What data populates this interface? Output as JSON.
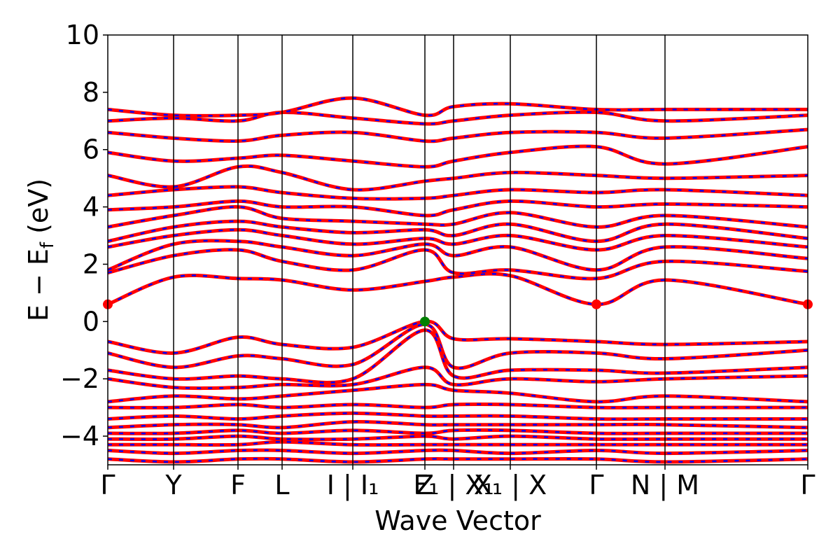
{
  "chart_data": {
    "type": "line",
    "xlabel": "Wave Vector",
    "ylabel": "E − E_f (eV)",
    "ylabel_parts": {
      "main": "E − E",
      "sub": "f",
      "unit": " (eV)"
    },
    "ylim": [
      -5,
      10
    ],
    "yticks": [
      -4,
      -2,
      0,
      2,
      4,
      6,
      8,
      10
    ],
    "ytick_labels": [
      "−4",
      "−2",
      "0",
      "2",
      "4",
      "6",
      "8",
      "10"
    ],
    "kpath_ticks": [
      {
        "label": "Γ",
        "k": 0.0
      },
      {
        "label": "Y",
        "k": 0.094
      },
      {
        "label": "F",
        "k": 0.186
      },
      {
        "label": "L",
        "k": 0.249
      },
      {
        "label": "I | I₁",
        "k": 0.35
      },
      {
        "label": "Z",
        "k": 0.453
      },
      {
        "label": "F₁ | X₁",
        "k": 0.494
      },
      {
        "label": "X₁ | X",
        "k": 0.575
      },
      {
        "label": "Γ",
        "k": 0.698
      },
      {
        "label": "N | M",
        "k": 0.796
      },
      {
        "label": "Γ",
        "k": 1.0
      }
    ],
    "grid": false,
    "legend": "none",
    "band_color": "#ff0000",
    "band_overlay_color": "#0000ff",
    "vbm": {
      "k": 0.453,
      "E": 0.0,
      "color": "#008000"
    },
    "cbm": [
      {
        "k": 0.0,
        "E": 0.6,
        "color": "#ff0000"
      },
      {
        "k": 0.698,
        "E": 0.6,
        "color": "#ff0000"
      },
      {
        "k": 1.0,
        "E": 0.6,
        "color": "#ff0000"
      }
    ],
    "bands": [
      {
        "k": [
          0,
          0.094,
          0.186,
          0.249,
          0.35,
          0.453,
          0.494,
          0.575,
          0.698,
          0.796,
          1.0
        ],
        "E": [
          0.6,
          1.55,
          1.5,
          1.45,
          1.1,
          1.4,
          1.55,
          1.6,
          0.6,
          1.45,
          0.6
        ]
      },
      {
        "k": [
          0,
          0.094,
          0.186,
          0.249,
          0.35,
          0.453,
          0.494,
          0.575,
          0.698,
          0.796,
          1.0
        ],
        "E": [
          1.7,
          2.3,
          2.5,
          2.1,
          1.8,
          2.5,
          1.7,
          1.8,
          1.5,
          2.1,
          1.75
        ]
      },
      {
        "k": [
          0,
          0.094,
          0.186,
          0.249,
          0.35,
          0.453,
          0.494,
          0.575,
          0.698,
          0.796,
          1.0
        ],
        "E": [
          1.8,
          2.7,
          2.8,
          2.6,
          2.3,
          2.7,
          2.3,
          2.6,
          1.8,
          2.6,
          2.2
        ]
      },
      {
        "k": [
          0,
          0.094,
          0.186,
          0.249,
          0.35,
          0.453,
          0.494,
          0.575,
          0.698,
          0.796,
          1.0
        ],
        "E": [
          2.6,
          3.0,
          3.2,
          3.0,
          2.7,
          2.9,
          2.7,
          3.0,
          2.5,
          3.0,
          2.6
        ]
      },
      {
        "k": [
          0,
          0.094,
          0.186,
          0.249,
          0.35,
          0.453,
          0.494,
          0.575,
          0.698,
          0.796,
          1.0
        ],
        "E": [
          2.8,
          3.3,
          3.5,
          3.3,
          3.1,
          3.2,
          3.0,
          3.4,
          2.8,
          3.4,
          2.9
        ]
      },
      {
        "k": [
          0,
          0.094,
          0.186,
          0.249,
          0.35,
          0.453,
          0.494,
          0.575,
          0.698,
          0.796,
          1.0
        ],
        "E": [
          3.3,
          3.7,
          4.0,
          3.6,
          3.5,
          3.4,
          3.4,
          3.8,
          3.3,
          3.7,
          3.3
        ]
      },
      {
        "k": [
          0,
          0.094,
          0.186,
          0.249,
          0.35,
          0.453,
          0.494,
          0.575,
          0.698,
          0.796,
          1.0
        ],
        "E": [
          3.9,
          4.0,
          4.2,
          4.0,
          4.0,
          3.7,
          3.9,
          4.2,
          4.0,
          4.1,
          4.0
        ]
      },
      {
        "k": [
          0,
          0.094,
          0.186,
          0.249,
          0.35,
          0.453,
          0.494,
          0.575,
          0.698,
          0.796,
          1.0
        ],
        "E": [
          4.4,
          4.6,
          4.7,
          4.5,
          4.3,
          4.3,
          4.4,
          4.6,
          4.5,
          4.6,
          4.4
        ]
      },
      {
        "k": [
          0,
          0.094,
          0.186,
          0.249,
          0.35,
          0.453,
          0.494,
          0.575,
          0.698,
          0.796,
          1.0
        ],
        "E": [
          5.1,
          4.7,
          5.4,
          5.2,
          4.6,
          4.9,
          5.0,
          5.2,
          5.1,
          5.0,
          5.1
        ]
      },
      {
        "k": [
          0,
          0.094,
          0.186,
          0.249,
          0.35,
          0.453,
          0.494,
          0.575,
          0.698,
          0.796,
          1.0
        ],
        "E": [
          5.9,
          5.6,
          5.7,
          5.8,
          5.6,
          5.4,
          5.6,
          5.9,
          6.1,
          5.5,
          6.1
        ]
      },
      {
        "k": [
          0,
          0.094,
          0.186,
          0.249,
          0.35,
          0.453,
          0.494,
          0.575,
          0.698,
          0.796,
          1.0
        ],
        "E": [
          6.6,
          6.4,
          6.3,
          6.5,
          6.6,
          6.3,
          6.4,
          6.6,
          6.6,
          6.4,
          6.7
        ]
      },
      {
        "k": [
          0,
          0.094,
          0.186,
          0.249,
          0.35,
          0.453,
          0.494,
          0.575,
          0.698,
          0.796,
          1.0
        ],
        "E": [
          7.0,
          7.1,
          7.0,
          7.3,
          7.1,
          6.9,
          7.0,
          7.2,
          7.3,
          7.0,
          7.2
        ]
      },
      {
        "k": [
          0,
          0.094,
          0.186,
          0.249,
          0.35,
          0.453,
          0.494,
          0.575,
          0.698,
          0.796,
          1.0
        ],
        "E": [
          7.4,
          7.2,
          7.2,
          7.3,
          7.8,
          7.2,
          7.5,
          7.6,
          7.4,
          7.4,
          7.4
        ]
      },
      {
        "k": [
          0,
          0.094,
          0.186,
          0.249,
          0.35,
          0.453,
          0.494,
          0.575,
          0.698,
          0.796,
          1.0
        ],
        "E": [
          -0.7,
          -1.1,
          -0.55,
          -0.8,
          -0.9,
          0.0,
          -0.6,
          -0.6,
          -0.7,
          -0.8,
          -0.7
        ]
      },
      {
        "k": [
          0,
          0.094,
          0.186,
          0.249,
          0.35,
          0.453,
          0.494,
          0.575,
          0.698,
          0.796,
          1.0
        ],
        "E": [
          -1.1,
          -1.6,
          -1.2,
          -1.3,
          -1.5,
          -0.1,
          -1.6,
          -1.1,
          -1.1,
          -1.3,
          -1.0
        ]
      },
      {
        "k": [
          0,
          0.094,
          0.186,
          0.249,
          0.35,
          0.453,
          0.494,
          0.575,
          0.698,
          0.796,
          1.0
        ],
        "E": [
          -1.7,
          -2.0,
          -1.9,
          -2.0,
          -2.0,
          -0.3,
          -1.9,
          -1.7,
          -1.7,
          -1.8,
          -1.6
        ]
      },
      {
        "k": [
          0,
          0.094,
          0.186,
          0.249,
          0.35,
          0.453,
          0.494,
          0.575,
          0.698,
          0.796,
          1.0
        ],
        "E": [
          -2.0,
          -2.3,
          -2.3,
          -2.2,
          -2.2,
          -1.6,
          -2.2,
          -2.0,
          -2.1,
          -2.0,
          -1.9
        ]
      },
      {
        "k": [
          0,
          0.094,
          0.186,
          0.249,
          0.35,
          0.453,
          0.494,
          0.575,
          0.698,
          0.796,
          1.0
        ],
        "E": [
          -2.8,
          -2.6,
          -2.7,
          -2.6,
          -2.4,
          -2.2,
          -2.4,
          -2.5,
          -2.8,
          -2.6,
          -2.8
        ]
      },
      {
        "k": [
          0,
          0.094,
          0.186,
          0.249,
          0.35,
          0.453,
          0.494,
          0.575,
          0.698,
          0.796,
          1.0
        ],
        "E": [
          -3.0,
          -3.0,
          -2.9,
          -3.0,
          -2.9,
          -3.0,
          -2.9,
          -2.9,
          -3.0,
          -3.0,
          -3.0
        ]
      },
      {
        "k": [
          0,
          0.094,
          0.186,
          0.249,
          0.35,
          0.453,
          0.494,
          0.575,
          0.698,
          0.796,
          1.0
        ],
        "E": [
          -3.4,
          -3.3,
          -3.4,
          -3.3,
          -3.2,
          -3.3,
          -3.3,
          -3.3,
          -3.4,
          -3.4,
          -3.4
        ]
      },
      {
        "k": [
          0,
          0.094,
          0.186,
          0.249,
          0.35,
          0.453,
          0.494,
          0.575,
          0.698,
          0.796,
          1.0
        ],
        "E": [
          -3.7,
          -3.6,
          -3.6,
          -3.7,
          -3.5,
          -3.6,
          -3.6,
          -3.6,
          -3.6,
          -3.6,
          -3.7
        ]
      },
      {
        "k": [
          0,
          0.094,
          0.186,
          0.249,
          0.35,
          0.453,
          0.494,
          0.575,
          0.698,
          0.796,
          1.0
        ],
        "E": [
          -3.9,
          -3.9,
          -3.8,
          -3.9,
          -3.8,
          -3.9,
          -3.8,
          -3.8,
          -3.9,
          -3.9,
          -3.9
        ]
      },
      {
        "k": [
          0,
          0.094,
          0.186,
          0.249,
          0.35,
          0.453,
          0.494,
          0.575,
          0.698,
          0.796,
          1.0
        ],
        "E": [
          -4.1,
          -4.1,
          -4.0,
          -4.1,
          -4.1,
          -4.0,
          -4.1,
          -4.0,
          -4.1,
          -4.1,
          -4.1
        ]
      },
      {
        "k": [
          0,
          0.094,
          0.186,
          0.249,
          0.35,
          0.453,
          0.494,
          0.575,
          0.698,
          0.796,
          1.0
        ],
        "E": [
          -4.3,
          -4.3,
          -4.3,
          -4.2,
          -4.3,
          -4.3,
          -4.3,
          -4.3,
          -4.3,
          -4.3,
          -4.3
        ]
      },
      {
        "k": [
          0,
          0.094,
          0.186,
          0.249,
          0.35,
          0.453,
          0.494,
          0.575,
          0.698,
          0.796,
          1.0
        ],
        "E": [
          -4.5,
          -4.6,
          -4.5,
          -4.5,
          -4.6,
          -4.5,
          -4.5,
          -4.6,
          -4.5,
          -4.6,
          -4.5
        ]
      },
      {
        "k": [
          0,
          0.094,
          0.186,
          0.249,
          0.35,
          0.453,
          0.494,
          0.575,
          0.698,
          0.796,
          1.0
        ],
        "E": [
          -4.8,
          -4.9,
          -4.8,
          -4.8,
          -4.9,
          -4.8,
          -4.8,
          -4.8,
          -4.8,
          -4.9,
          -4.8
        ]
      }
    ]
  }
}
